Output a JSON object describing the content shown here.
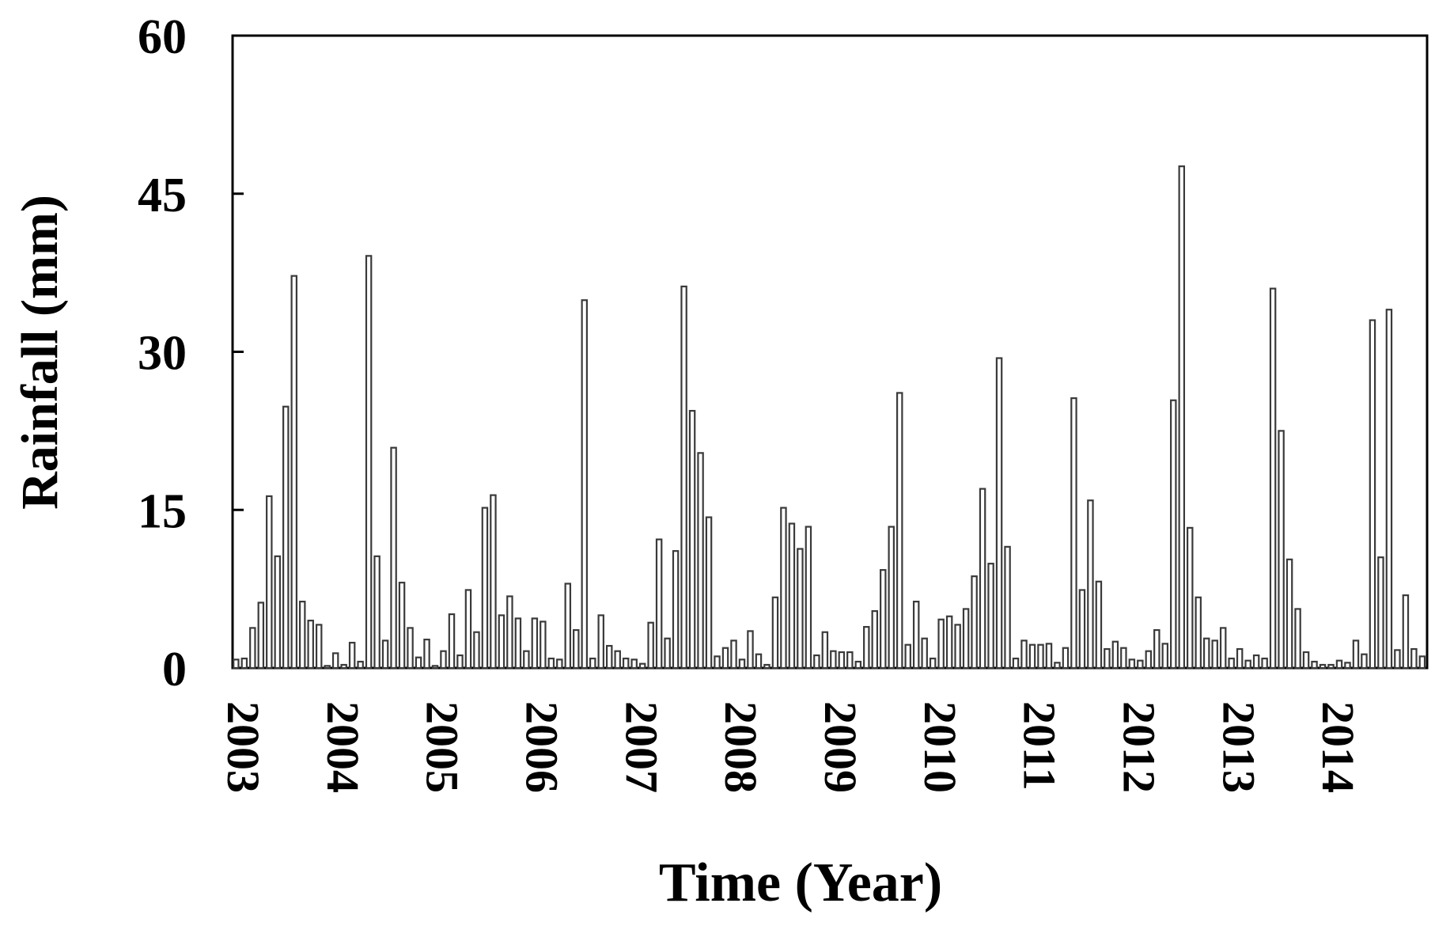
{
  "chart_data": {
    "type": "bar",
    "xlabel": "Time (Year)",
    "ylabel": "Rainfall (mm)",
    "ylim": [
      0,
      60
    ],
    "yticks": [
      0,
      15,
      30,
      45,
      60
    ],
    "year_labels": [
      "2003",
      "2004",
      "2005",
      "2006",
      "2007",
      "2008",
      "2009",
      "2010",
      "2011",
      "2012",
      "2013",
      "2014"
    ],
    "grid": false,
    "bar_color": "#3a3a3a",
    "frequency": "monthly",
    "start": "2003-01",
    "series": [
      {
        "values": [
          0.8,
          0.9,
          3.8,
          6.2,
          16.3,
          10.6,
          24.8,
          37.2,
          6.3,
          4.5,
          4.1,
          0.2,
          1.4,
          0.3,
          2.4,
          0.6,
          39.1,
          10.6,
          2.6,
          20.9,
          8.1,
          3.8,
          1.0,
          2.7,
          0.2,
          1.6,
          5.1,
          1.2,
          7.4,
          3.4,
          15.2,
          16.4,
          5.0,
          6.8,
          4.7,
          1.6,
          4.7,
          4.4,
          0.9,
          0.8,
          8.0,
          3.6,
          34.9,
          0.9,
          5.0,
          2.1,
          1.6,
          0.9,
          0.8,
          0.4,
          4.3,
          12.2,
          2.8,
          11.1,
          36.2,
          24.4,
          20.4,
          14.3,
          1.1,
          1.9,
          2.6,
          0.8,
          3.5,
          1.3,
          0.3,
          6.7,
          15.2,
          13.7,
          11.3,
          13.4,
          1.2,
          3.4,
          1.6,
          1.5,
          1.5,
          0.6,
          3.9,
          5.4,
          9.3,
          13.4,
          26.1,
          2.2,
          6.3,
          2.8,
          0.9,
          4.6,
          4.9,
          4.1,
          5.6,
          8.7,
          17.0,
          9.9,
          29.4,
          11.5,
          0.9,
          2.6,
          2.2,
          2.2,
          2.3,
          0.5,
          1.9,
          25.6,
          7.4,
          15.9,
          8.2,
          1.8,
          2.5,
          1.9,
          0.8,
          0.7,
          1.6,
          3.6,
          2.3,
          25.4,
          47.6,
          13.3,
          6.7,
          2.8,
          2.6,
          3.8,
          0.9,
          1.8,
          0.7,
          1.2,
          0.9,
          36.0,
          22.5,
          10.3,
          5.6,
          1.5,
          0.6,
          0.3,
          0.3,
          0.7,
          0.5,
          2.6,
          1.3,
          33.0,
          10.5,
          34.0,
          1.7,
          6.9,
          1.8,
          1.1
        ]
      }
    ]
  }
}
